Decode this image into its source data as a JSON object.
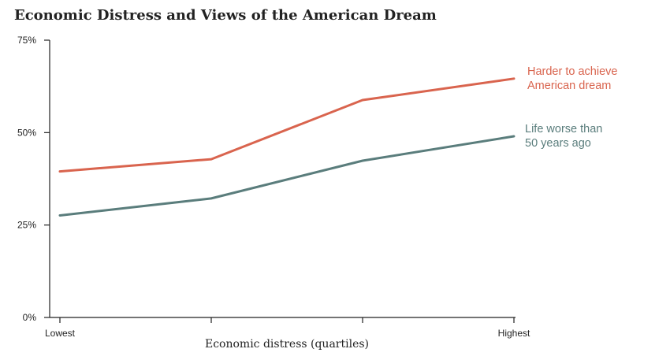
{
  "chart_data": {
    "type": "line",
    "title": "Economic Distress and Views of the American Dream",
    "xlabel": "Economic distress (quartiles)",
    "ylabel": "",
    "x": [
      1,
      2,
      3,
      4
    ],
    "x_tick_labels": [
      "Lowest",
      "",
      "",
      "Highest"
    ],
    "ylim": [
      0,
      75
    ],
    "y_ticks": [
      0,
      25,
      50,
      75
    ],
    "y_tick_labels": [
      "0%",
      "25%",
      "50%",
      "75%"
    ],
    "grid": false,
    "legend": "direct labels at right end of lines",
    "series": [
      {
        "name": "Harder to achieve American dream",
        "label_lines": [
          "Harder to achieve",
          "American dream"
        ],
        "color": "#d9644e",
        "values": [
          39.5,
          42.8,
          58.8,
          64.6
        ]
      },
      {
        "name": "Life worse than 50 years ago",
        "label_lines": [
          "Life worse than",
          "50 years ago"
        ],
        "color": "#5a7d7c",
        "values": [
          27.6,
          32.2,
          42.4,
          49.0
        ]
      }
    ]
  }
}
